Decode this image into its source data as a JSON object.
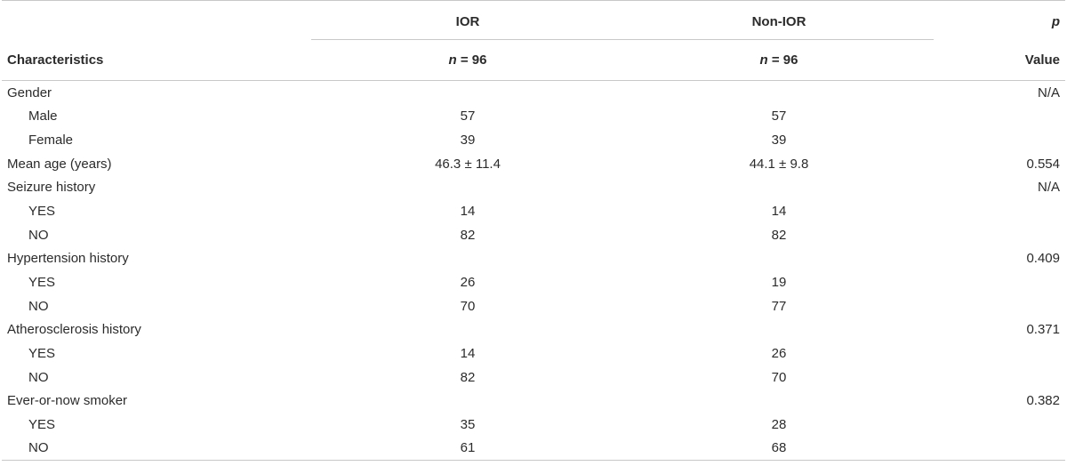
{
  "header": {
    "ior": "IOR",
    "non_ior": "Non-IOR",
    "p_top": "p",
    "characteristics": "Characteristics",
    "n_ior_italic": "n",
    "n_ior_value": " = 96",
    "n_nonior_italic": "n",
    "n_nonior_value": " = 96",
    "p_bottom": "Value"
  },
  "rows": [
    {
      "label": "Gender",
      "ior": "",
      "non_ior": "",
      "p": "N/A",
      "indent": false
    },
    {
      "label": "Male",
      "ior": "57",
      "non_ior": "57",
      "p": "",
      "indent": true
    },
    {
      "label": "Female",
      "ior": "39",
      "non_ior": "39",
      "p": "",
      "indent": true
    },
    {
      "label": "Mean age (years)",
      "ior": "46.3 ± 11.4",
      "non_ior": "44.1 ± 9.8",
      "p": "0.554",
      "indent": false
    },
    {
      "label": "Seizure history",
      "ior": "",
      "non_ior": "",
      "p": "N/A",
      "indent": false
    },
    {
      "label": "YES",
      "ior": "14",
      "non_ior": "14",
      "p": "",
      "indent": true
    },
    {
      "label": "NO",
      "ior": "82",
      "non_ior": "82",
      "p": "",
      "indent": true
    },
    {
      "label": "Hypertension history",
      "ior": "",
      "non_ior": "",
      "p": "0.409",
      "indent": false
    },
    {
      "label": "YES",
      "ior": "26",
      "non_ior": "19",
      "p": "",
      "indent": true
    },
    {
      "label": "NO",
      "ior": "70",
      "non_ior": "77",
      "p": "",
      "indent": true
    },
    {
      "label": "Atherosclerosis history",
      "ior": "",
      "non_ior": "",
      "p": "0.371",
      "indent": false
    },
    {
      "label": "YES",
      "ior": "14",
      "non_ior": "26",
      "p": "",
      "indent": true
    },
    {
      "label": "NO",
      "ior": "82",
      "non_ior": "70",
      "p": "",
      "indent": true
    },
    {
      "label": "Ever-or-now smoker",
      "ior": "",
      "non_ior": "",
      "p": "0.382",
      "indent": false
    },
    {
      "label": "YES",
      "ior": "35",
      "non_ior": "28",
      "p": "",
      "indent": true
    },
    {
      "label": "NO",
      "ior": "61",
      "non_ior": "68",
      "p": "",
      "indent": true
    }
  ]
}
